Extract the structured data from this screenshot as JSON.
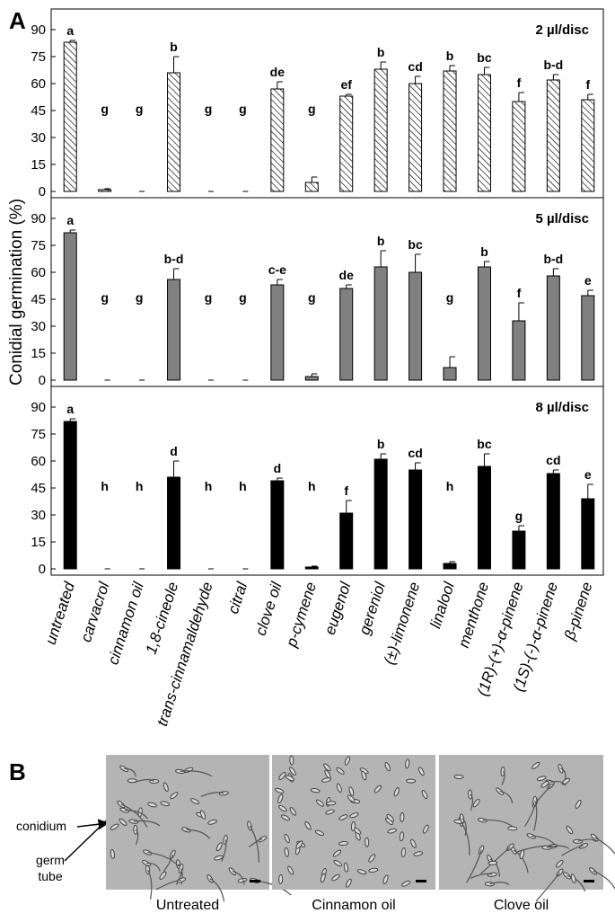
{
  "panel_a_label": "A",
  "y_label": "Conidial germination (%)",
  "chart_data": [
    {
      "type": "bar",
      "title": "2 µl/disc",
      "color": "#ffffff",
      "pattern": "hatch",
      "values": [
        83,
        1,
        0,
        66,
        0,
        0,
        57,
        5,
        53,
        68,
        60,
        67,
        65,
        50,
        62,
        51
      ],
      "errors": [
        1,
        0.5,
        0,
        9,
        0,
        0,
        4,
        3,
        1,
        4,
        4,
        3,
        4,
        5,
        3,
        3
      ],
      "letters": [
        "a",
        "g",
        "g",
        "b",
        "g",
        "g",
        "de",
        "g",
        "ef",
        "b",
        "cd",
        "b",
        "bc",
        "f",
        "b-d",
        "f"
      ],
      "ylim": [
        0,
        100
      ],
      "yticks": [
        0,
        15,
        30,
        45,
        60,
        75,
        90
      ]
    },
    {
      "type": "bar",
      "title": "5 µl/disc",
      "color": "#808080",
      "values": [
        82,
        0,
        0,
        56,
        0,
        0,
        53,
        2,
        51,
        63,
        60,
        7,
        63,
        33,
        58,
        47
      ],
      "errors": [
        1.5,
        0,
        0,
        6,
        0,
        0,
        3,
        1.5,
        2,
        9,
        10,
        6,
        3,
        10,
        4,
        3
      ],
      "letters": [
        "a",
        "g",
        "g",
        "b-d",
        "g",
        "g",
        "c-e",
        "g",
        "de",
        "b",
        "bc",
        "g",
        "b",
        "f",
        "b-d",
        "e"
      ],
      "ylim": [
        0,
        100
      ],
      "yticks": [
        0,
        15,
        30,
        45,
        60,
        75,
        90
      ]
    },
    {
      "type": "bar",
      "title": "8 µl/disc",
      "color": "#000000",
      "categories": [
        "untreated",
        "carvacrol",
        "cinnamon oil",
        "1,8-cineole",
        "trans-cinnamaldehyde",
        "citral",
        "clove oil",
        "p-cymene",
        "eugenol",
        "gereniol",
        "(±)-limonene",
        "linalool",
        "menthone",
        "(1R)-(+)-α-pinene",
        "(1S)-(-)-α-pinene",
        "β-pinene"
      ],
      "values": [
        82,
        0,
        0,
        51,
        0,
        0,
        49,
        1,
        31,
        61,
        55,
        3,
        57,
        21,
        53,
        39
      ],
      "errors": [
        1.5,
        0,
        0,
        9,
        0,
        0,
        1.5,
        0.5,
        7,
        3,
        4,
        1,
        7,
        3,
        2,
        8
      ],
      "letters": [
        "a",
        "h",
        "h",
        "d",
        "h",
        "h",
        "d",
        "h",
        "f",
        "b",
        "cd",
        "h",
        "bc",
        "g",
        "cd",
        "e"
      ],
      "ylim": [
        0,
        100
      ],
      "yticks": [
        0,
        15,
        30,
        45,
        60,
        75,
        90
      ]
    }
  ],
  "panel_b": {
    "label": "B",
    "captions": [
      "Untreated",
      "Cinnamon oil",
      "Clove oil"
    ],
    "conidium": "conidium",
    "germ_tube": [
      "germ",
      "tube"
    ]
  }
}
